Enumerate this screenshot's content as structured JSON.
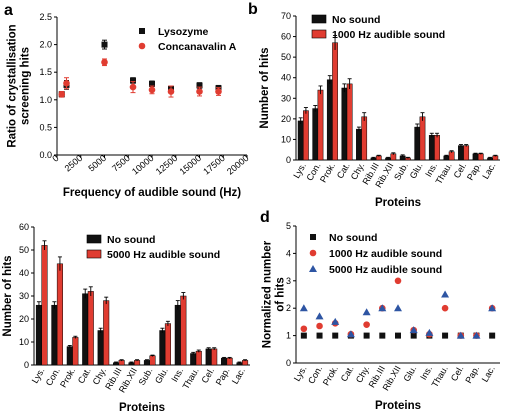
{
  "colors": {
    "black_series": "#111111",
    "red_series": "#e03c31",
    "blue_series": "#2e55a3",
    "grid_line": "#bbbbbb"
  },
  "chart_data": [
    {
      "panel": "a",
      "type": "scatter",
      "xlabel": "Frequency of audible sound (Hz)",
      "ylabel": "Ratio of crystallisation screening hits",
      "ylabel_lines": [
        "Ratio of crystallisation",
        "screening hits"
      ],
      "xlim": [
        0,
        20000
      ],
      "ylim": [
        0,
        2.5
      ],
      "xticks": [
        "0",
        "2500",
        "5000",
        "7500",
        "10000",
        "12500",
        "15000",
        "17500",
        "20000"
      ],
      "yticks": [
        "0.0",
        "0.5",
        "1.0",
        "1.5",
        "2.0",
        "2.5"
      ],
      "legend_position": "top-right",
      "series": [
        {
          "name": "Lysozyme",
          "color": "#111111",
          "marker": "square",
          "x": [
            500,
            1000,
            5000,
            8000,
            10000,
            12000,
            15000,
            17000
          ],
          "y": [
            1.1,
            1.27,
            2.0,
            1.35,
            1.29,
            1.2,
            1.26,
            1.21
          ],
          "err": [
            0.05,
            0.08,
            0.08,
            0.05,
            0.05,
            0.05,
            0.05,
            0.05
          ]
        },
        {
          "name": "Concanavalin A",
          "color": "#e03c31",
          "marker": "circle",
          "x": [
            500,
            1000,
            5000,
            8000,
            10000,
            12000,
            15000,
            17000
          ],
          "y": [
            1.1,
            1.3,
            1.68,
            1.23,
            1.18,
            1.15,
            1.15,
            1.15
          ],
          "err": [
            0.05,
            0.1,
            0.06,
            0.1,
            0.07,
            0.1,
            0.08,
            0.07
          ]
        }
      ]
    },
    {
      "panel": "b",
      "type": "bar",
      "xlabel": "Proteins",
      "ylabel": "Number of hits",
      "categories": [
        "Lys.",
        "Con.",
        "Prok.",
        "Cat.",
        "Chy.",
        "Rib.III",
        "Rib.XII",
        "Sub.",
        "Glu.",
        "Ins.",
        "Thau.",
        "Cel.",
        "Pap.",
        "Lac."
      ],
      "ylim": [
        0,
        70
      ],
      "yticks": [
        "0",
        "10",
        "20",
        "30",
        "40",
        "50",
        "60",
        "70"
      ],
      "legend_position": "top-right",
      "series": [
        {
          "name": "No sound",
          "color": "#111111",
          "values": [
            19,
            25,
            39,
            35,
            15,
            1,
            1,
            2,
            16,
            12,
            2,
            7,
            3,
            1
          ],
          "err": [
            1.5,
            1.5,
            2,
            2,
            1,
            0.3,
            0.3,
            0.5,
            1.5,
            1,
            0.3,
            0.5,
            0.3,
            0.3
          ]
        },
        {
          "name": "1000 Hz audible sound",
          "color": "#e03c31",
          "values": [
            24,
            34,
            57,
            37,
            21,
            2,
            3,
            1,
            21,
            12,
            4,
            7,
            3,
            2
          ],
          "err": [
            1.5,
            2,
            3.5,
            2.5,
            2,
            0.3,
            0.5,
            0.3,
            2,
            1,
            0.5,
            0.5,
            0.3,
            0.3
          ]
        }
      ]
    },
    {
      "panel": "c",
      "type": "bar",
      "xlabel": "Proteins",
      "ylabel": "Number of hits",
      "categories": [
        "Lys.",
        "Con.",
        "Prok.",
        "Cat.",
        "Chy.",
        "Rib.III",
        "Rib.XII",
        "Sub.",
        "Glu.",
        "Ins.",
        "Thau.",
        "Cel.",
        "Pap.",
        "Lac."
      ],
      "ylim": [
        0,
        60
      ],
      "yticks": [
        "0",
        "10",
        "20",
        "30",
        "40",
        "50",
        "60"
      ],
      "legend_position": "top-right",
      "series": [
        {
          "name": "No sound",
          "color": "#111111",
          "values": [
            26,
            26,
            8,
            31,
            15,
            1,
            1,
            2,
            15,
            26,
            5,
            7,
            3,
            1
          ],
          "err": [
            1.5,
            1.5,
            0.5,
            2,
            1,
            0.3,
            0.3,
            0.3,
            1,
            2,
            0.5,
            0.5,
            0.3,
            0.3
          ]
        },
        {
          "name": "5000 Hz audible sound",
          "color": "#e03c31",
          "values": [
            52,
            44,
            12,
            32,
            28,
            2,
            2,
            4,
            18,
            30,
            6,
            7,
            3,
            2
          ],
          "err": [
            2,
            3,
            0.5,
            2,
            1.5,
            0.3,
            0.3,
            0.3,
            1,
            1.5,
            0.5,
            0.5,
            0.3,
            0.3
          ]
        }
      ]
    },
    {
      "panel": "d",
      "type": "scatter",
      "xlabel": "Proteins",
      "ylabel": "Normalized number of hits",
      "ylabel_lines": [
        "Normalized number",
        "of hits"
      ],
      "categories": [
        "Lys.",
        "Con.",
        "Prok.",
        "Cat.",
        "Chy.",
        "Rib.III",
        "Rib.XII",
        "Glu.",
        "Ins.",
        "Thau.",
        "Cel.",
        "Pap.",
        "Lac."
      ],
      "ylim": [
        0,
        5
      ],
      "yticks": [
        "0",
        "1",
        "2",
        "3",
        "4",
        "5"
      ],
      "legend_position": "top-left",
      "series": [
        {
          "name": "No sound",
          "color": "#111111",
          "marker": "square",
          "values": [
            1,
            1,
            1,
            1,
            1,
            1,
            1,
            1,
            1,
            1,
            1,
            1,
            1
          ]
        },
        {
          "name": "1000 Hz audible sound",
          "color": "#e03c31",
          "marker": "circle",
          "values": [
            1.25,
            1.35,
            1.45,
            1.05,
            1.4,
            2.0,
            3.0,
            1.2,
            1.05,
            2.0,
            1.0,
            1.0,
            2.0
          ]
        },
        {
          "name": "5000 Hz audible sound",
          "color": "#2e55a3",
          "marker": "triangle",
          "values": [
            2.0,
            1.7,
            1.5,
            1.05,
            1.85,
            2.0,
            2.0,
            1.2,
            1.1,
            2.5,
            1.0,
            1.0,
            2.0
          ]
        }
      ]
    }
  ]
}
